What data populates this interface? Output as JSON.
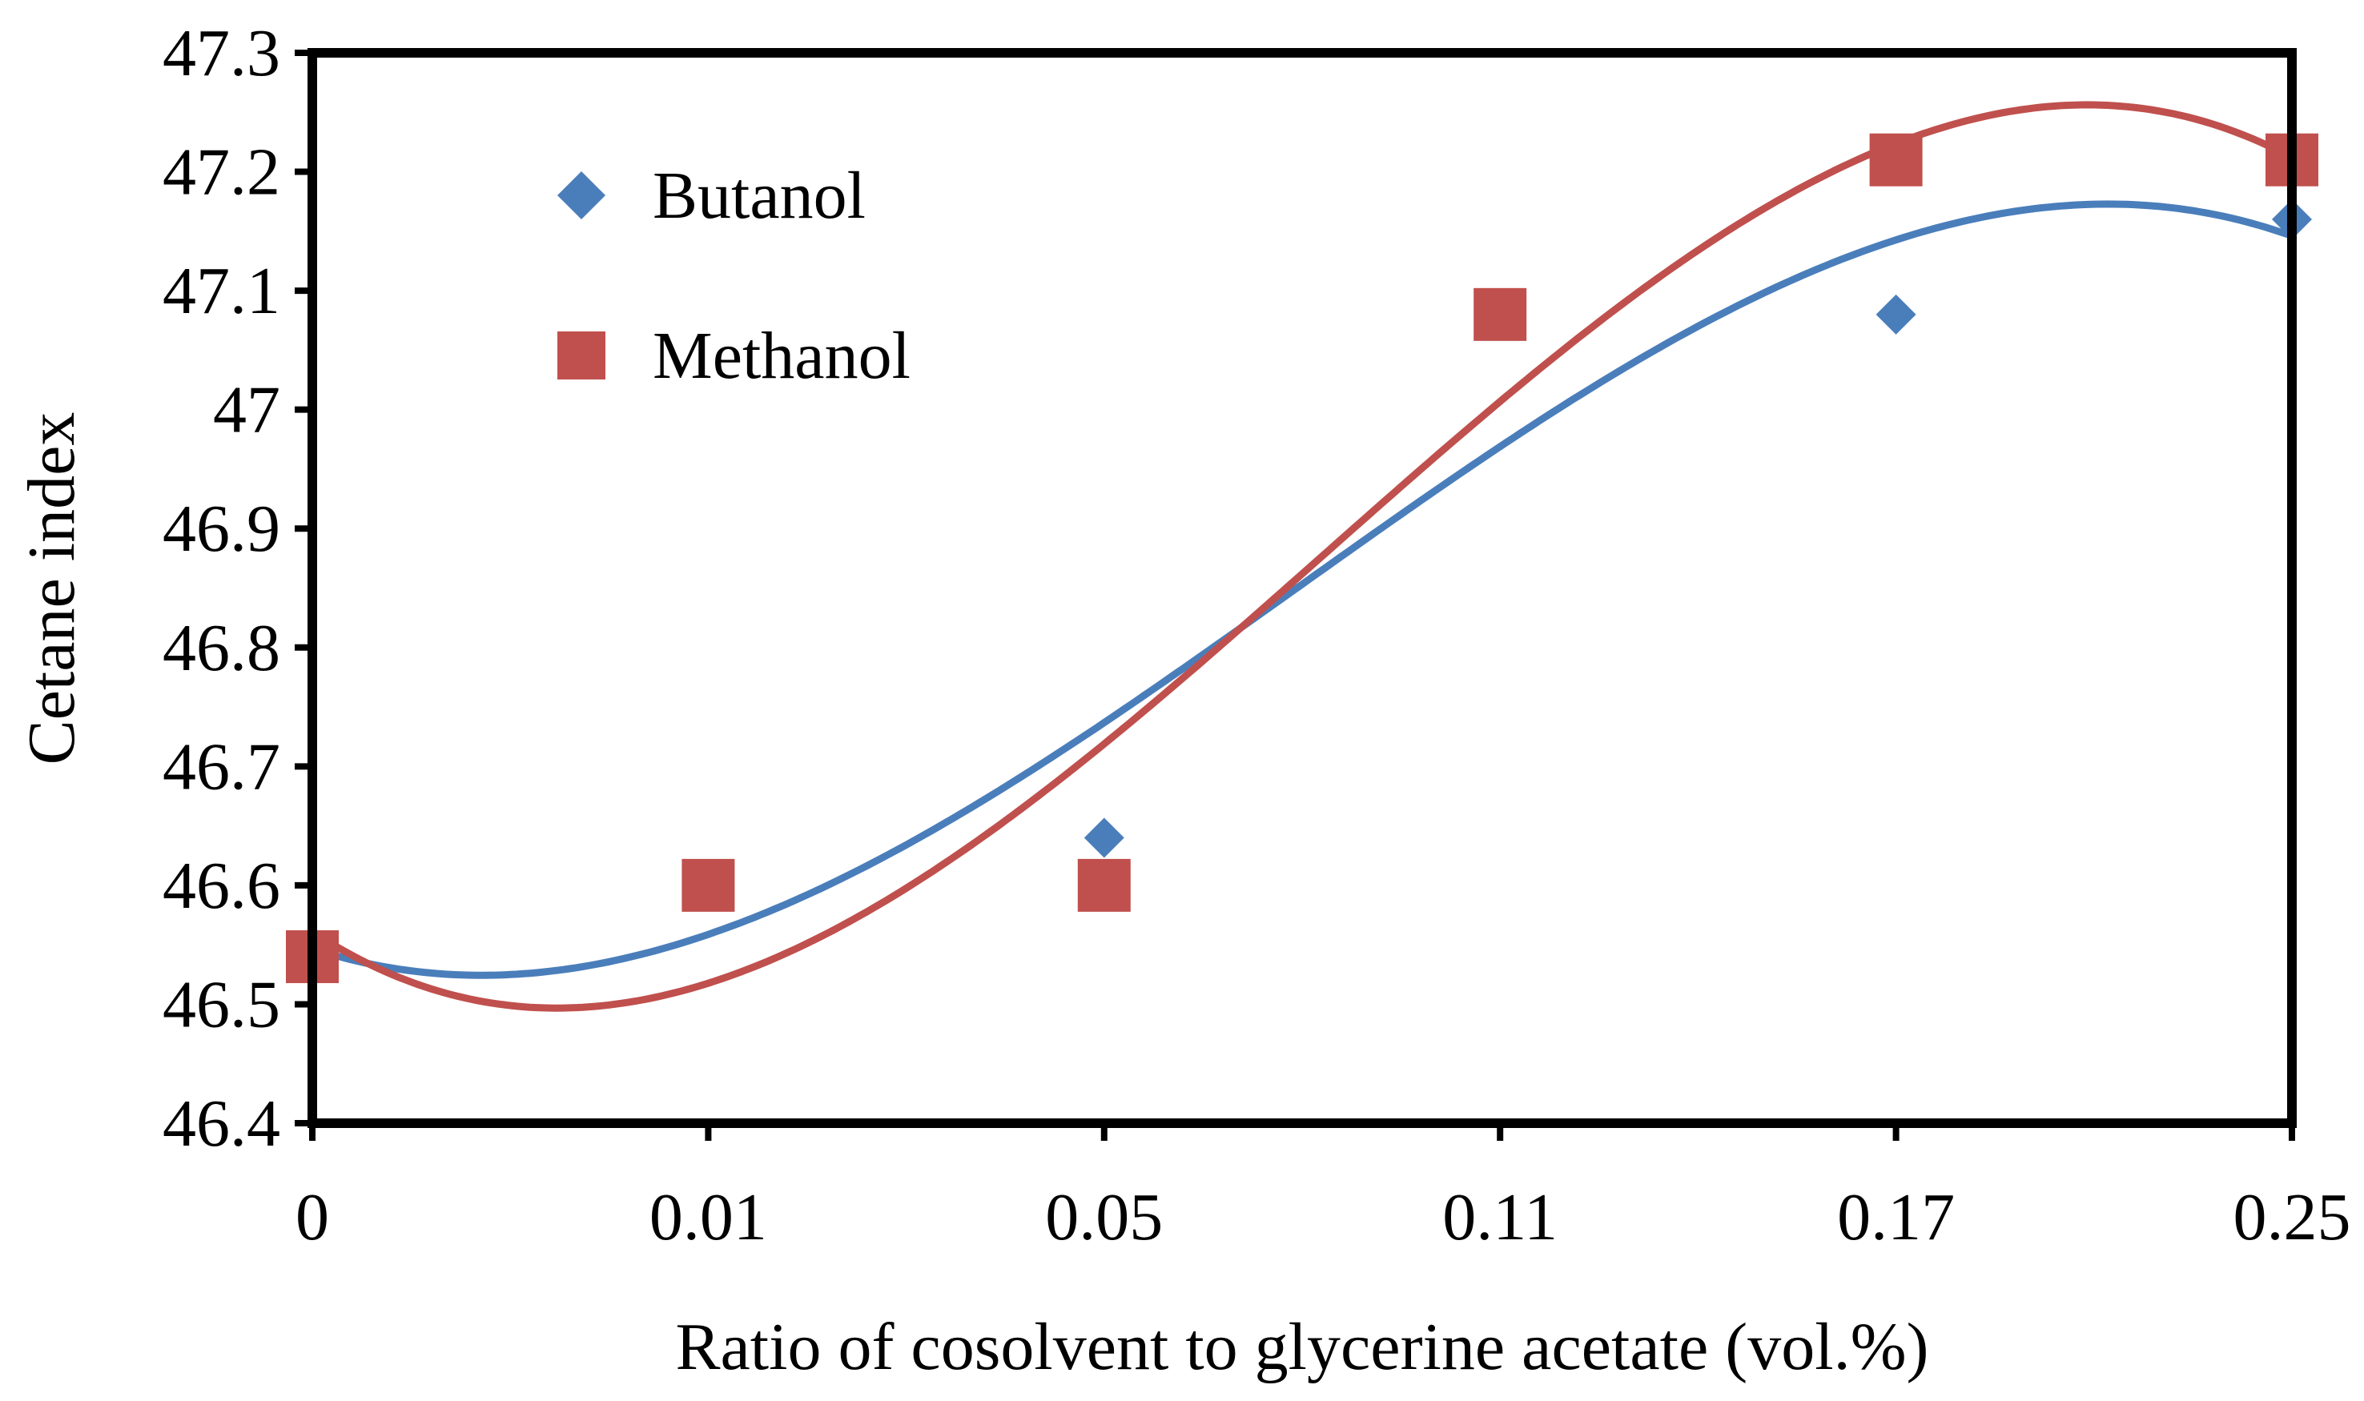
{
  "chart_data": {
    "type": "scatter",
    "title": "",
    "xlabel": "Ratio of cosolvent to glycerine acetate (vol.%)",
    "ylabel": "Cetane index",
    "categories": [
      "0",
      "0.01",
      "0.05",
      "0.11",
      "0.17",
      "0.25"
    ],
    "ylim": [
      46.4,
      47.3
    ],
    "yticks": [
      "46.4",
      "46.5",
      "46.6",
      "46.7",
      "46.8",
      "46.9",
      "47",
      "47.1",
      "47.2",
      "47.3"
    ],
    "grid": false,
    "legend_position": "top-left",
    "trendline": "polynomial (order 3)",
    "series": [
      {
        "name": "Butanol",
        "marker": "diamond",
        "color": "#4a7ebb",
        "values": [
          46.54,
          46.6,
          46.64,
          47.08,
          47.08,
          47.16
        ]
      },
      {
        "name": "Methanol",
        "marker": "square",
        "color": "#c0504d",
        "values": [
          46.54,
          46.6,
          46.6,
          47.08,
          47.21,
          47.21
        ]
      }
    ]
  }
}
